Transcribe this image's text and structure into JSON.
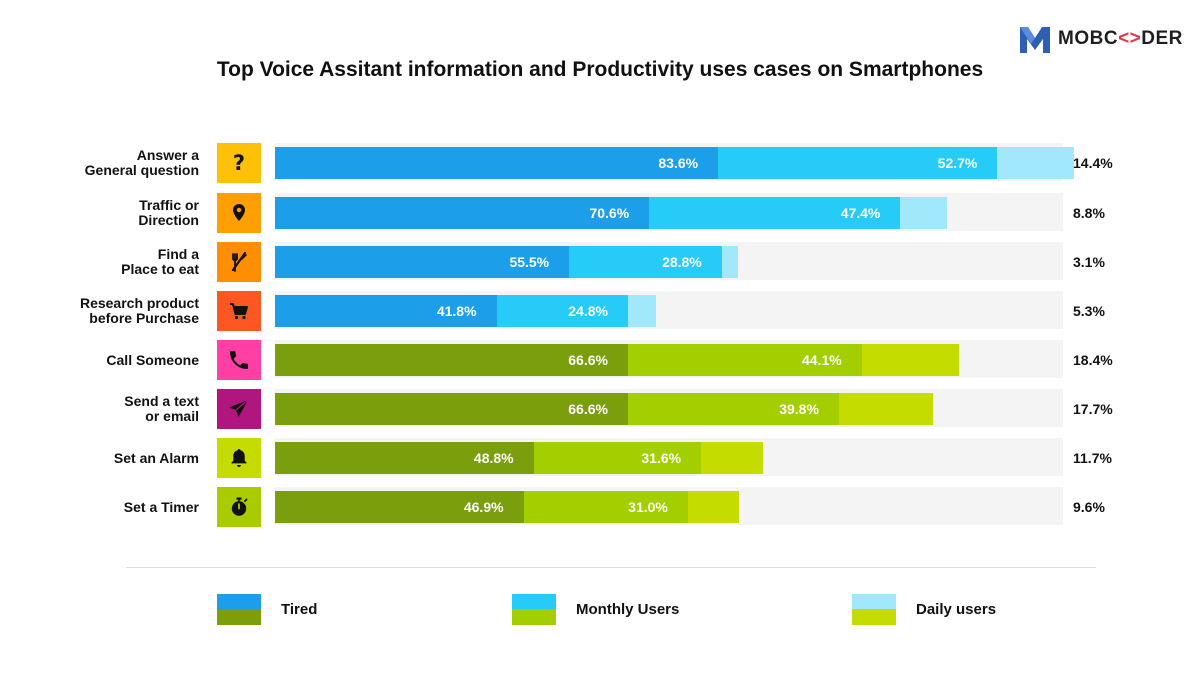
{
  "logo": {
    "part1": "MOBC",
    "part2": "<>",
    "part3": "DER"
  },
  "chart_data": {
    "type": "bar",
    "orientation": "horizontal",
    "stacked": true,
    "title": "Top Voice Assitant information and Productivity uses cases on Smartphones",
    "categories": [
      "Answer a\nGeneral question",
      "Traffic or\nDirection",
      "Find a\nPlace to eat",
      "Research product\nbefore Purchase",
      "Call Someone",
      "Send a text\nor email",
      "Set an Alarm",
      "Set a Timer"
    ],
    "value_labels": {
      "tired": [
        "83.6%",
        "70.6%",
        "55.5%",
        "41.8%",
        "66.6%",
        "66.6%",
        "48.8%",
        "46.9%"
      ],
      "monthly": [
        "52.7%",
        "47.4%",
        "28.8%",
        "24.8%",
        "44.1%",
        "39.8%",
        "31.6%",
        "31.0%"
      ],
      "daily": [
        "14.4%",
        "8.8%",
        "3.1%",
        "5.3%",
        "18.4%",
        "17.7%",
        "11.7%",
        "9.6%"
      ]
    },
    "series": [
      {
        "name": "Tired",
        "values": [
          83.6,
          70.6,
          55.5,
          41.8,
          66.6,
          66.6,
          48.8,
          46.9
        ]
      },
      {
        "name": "Monthly Users",
        "values": [
          52.7,
          47.4,
          28.8,
          24.8,
          44.1,
          39.8,
          31.6,
          31.0
        ]
      },
      {
        "name": "Daily users",
        "values": [
          14.4,
          8.8,
          3.1,
          5.3,
          18.4,
          17.7,
          11.7,
          9.6
        ]
      }
    ],
    "groups": [
      "blue",
      "blue",
      "blue",
      "blue",
      "green",
      "green",
      "green",
      "green"
    ],
    "icons": [
      "question-icon",
      "location-pin-icon",
      "fork-knife-icon",
      "shopping-cart-icon",
      "phone-icon",
      "send-icon",
      "bell-icon",
      "stopwatch-icon"
    ],
    "icon_colors": [
      "#ffc107",
      "#ffa000",
      "#ff8f00",
      "#ff5722",
      "#ff3fa4",
      "#b0167e",
      "#c6dc00",
      "#a8cc00"
    ],
    "colors": {
      "blue": {
        "tired": "#1c9ee8",
        "monthly": "#26ccf7",
        "daily": "#a2e8fc"
      },
      "green": {
        "tired": "#7a9e0c",
        "monthly": "#a3cf00",
        "daily": "#c5dc00"
      }
    },
    "legend_position": "bottom",
    "grid": false
  }
}
